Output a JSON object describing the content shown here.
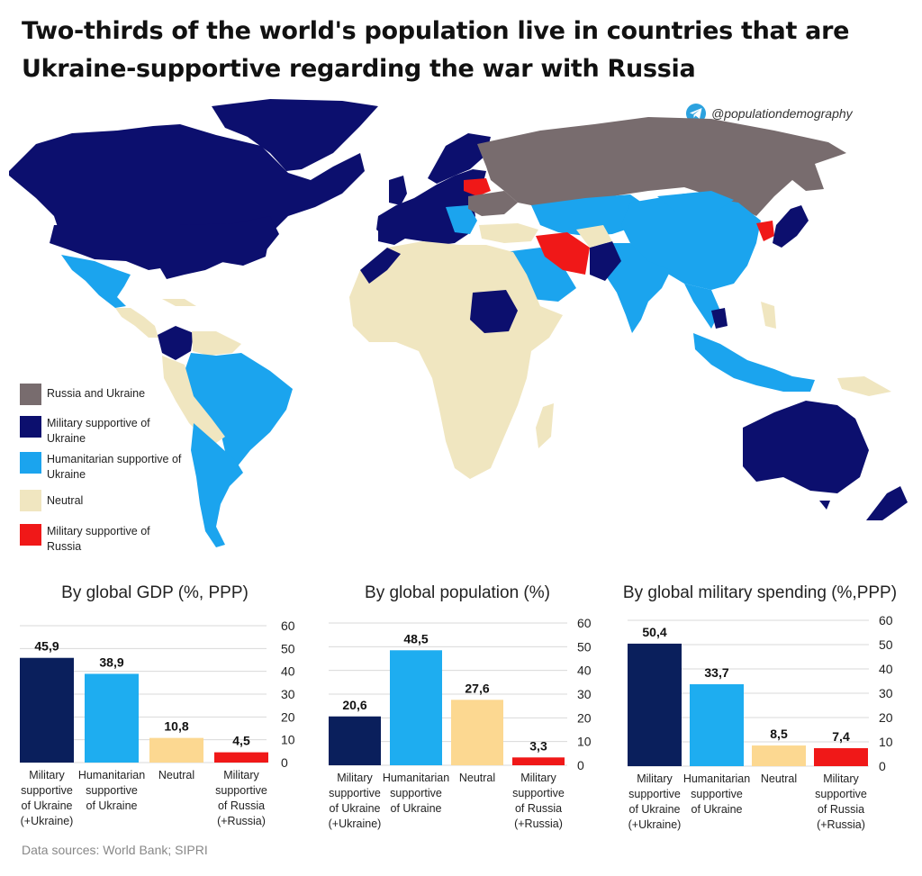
{
  "header": {
    "title_line1": "Two-thirds of the world's population live in countries that are",
    "title_line2": "Ukraine-supportive regarding the war with Russia",
    "handle": "@populationdemography",
    "handle_icon": "telegram-icon"
  },
  "legend": [
    {
      "label": "Russia and Ukraine",
      "color": "#786c6e"
    },
    {
      "label": "Military supportive of Ukraine",
      "color": "#0c0f6e"
    },
    {
      "label": "Humanitarian supportive of Ukraine",
      "color": "#1ba4ee"
    },
    {
      "label": "Neutral",
      "color": "#f0e6c0"
    },
    {
      "label": "Military supportive of Russia",
      "color": "#f01818"
    }
  ],
  "colors": {
    "military_ukraine_bar": "#0a1f5c",
    "humanitarian_bar": "#1eadf0",
    "neutral_bar": "#fcd891",
    "russia_bar": "#f01818",
    "grid": "#d9d9d9"
  },
  "chart_data": [
    {
      "type": "bar",
      "title": "By global GDP (%, PPP)",
      "categories": [
        [
          "Military",
          "supportive",
          "of Ukraine",
          "(+Ukraine)"
        ],
        [
          "Humanitarian",
          "supportive",
          "of Ukraine"
        ],
        [
          "Neutral"
        ],
        [
          "Military",
          "supportive",
          "of Russia",
          "(+Russia)"
        ]
      ],
      "values": [
        45.9,
        38.9,
        10.8,
        4.5
      ],
      "value_labels": [
        "45,9",
        "38,9",
        "10,8",
        "4,5"
      ],
      "ylim": [
        0,
        60
      ],
      "yticks": [
        "0",
        "10",
        "20",
        "30",
        "40",
        "50",
        "60"
      ],
      "grid": true
    },
    {
      "type": "bar",
      "title": "By global population (%)",
      "categories": [
        [
          "Military",
          "supportive",
          "of Ukraine",
          "(+Ukraine)"
        ],
        [
          "Humanitarian",
          "supportive",
          "of Ukraine"
        ],
        [
          "Neutral"
        ],
        [
          "Military",
          "supportive",
          "of Russia",
          "(+Russia)"
        ]
      ],
      "values": [
        20.6,
        48.5,
        27.6,
        3.3
      ],
      "value_labels": [
        "20,6",
        "48,5",
        "27,6",
        "3,3"
      ],
      "ylim": [
        0,
        60
      ],
      "yticks": [
        "0",
        "10",
        "20",
        "30",
        "40",
        "50",
        "60"
      ],
      "grid": true
    },
    {
      "type": "bar",
      "title": "By global military spending (%,PPP)",
      "categories": [
        [
          "Military",
          "supportive",
          "of Ukraine",
          "(+Ukraine)"
        ],
        [
          "Humanitarian",
          "supportive",
          "of Ukraine"
        ],
        [
          "Neutral"
        ],
        [
          "Military",
          "supportive",
          "of Russia",
          "(+Russia)"
        ]
      ],
      "values": [
        50.4,
        33.7,
        8.5,
        7.4
      ],
      "value_labels": [
        "50,4",
        "33,7",
        "8,5",
        "7,4"
      ],
      "ylim": [
        0,
        60
      ],
      "yticks": [
        "0",
        "10",
        "20",
        "30",
        "40",
        "50",
        "60"
      ],
      "grid": true
    }
  ],
  "footer": {
    "source": "Data sources: World Bank; SIPRI"
  }
}
